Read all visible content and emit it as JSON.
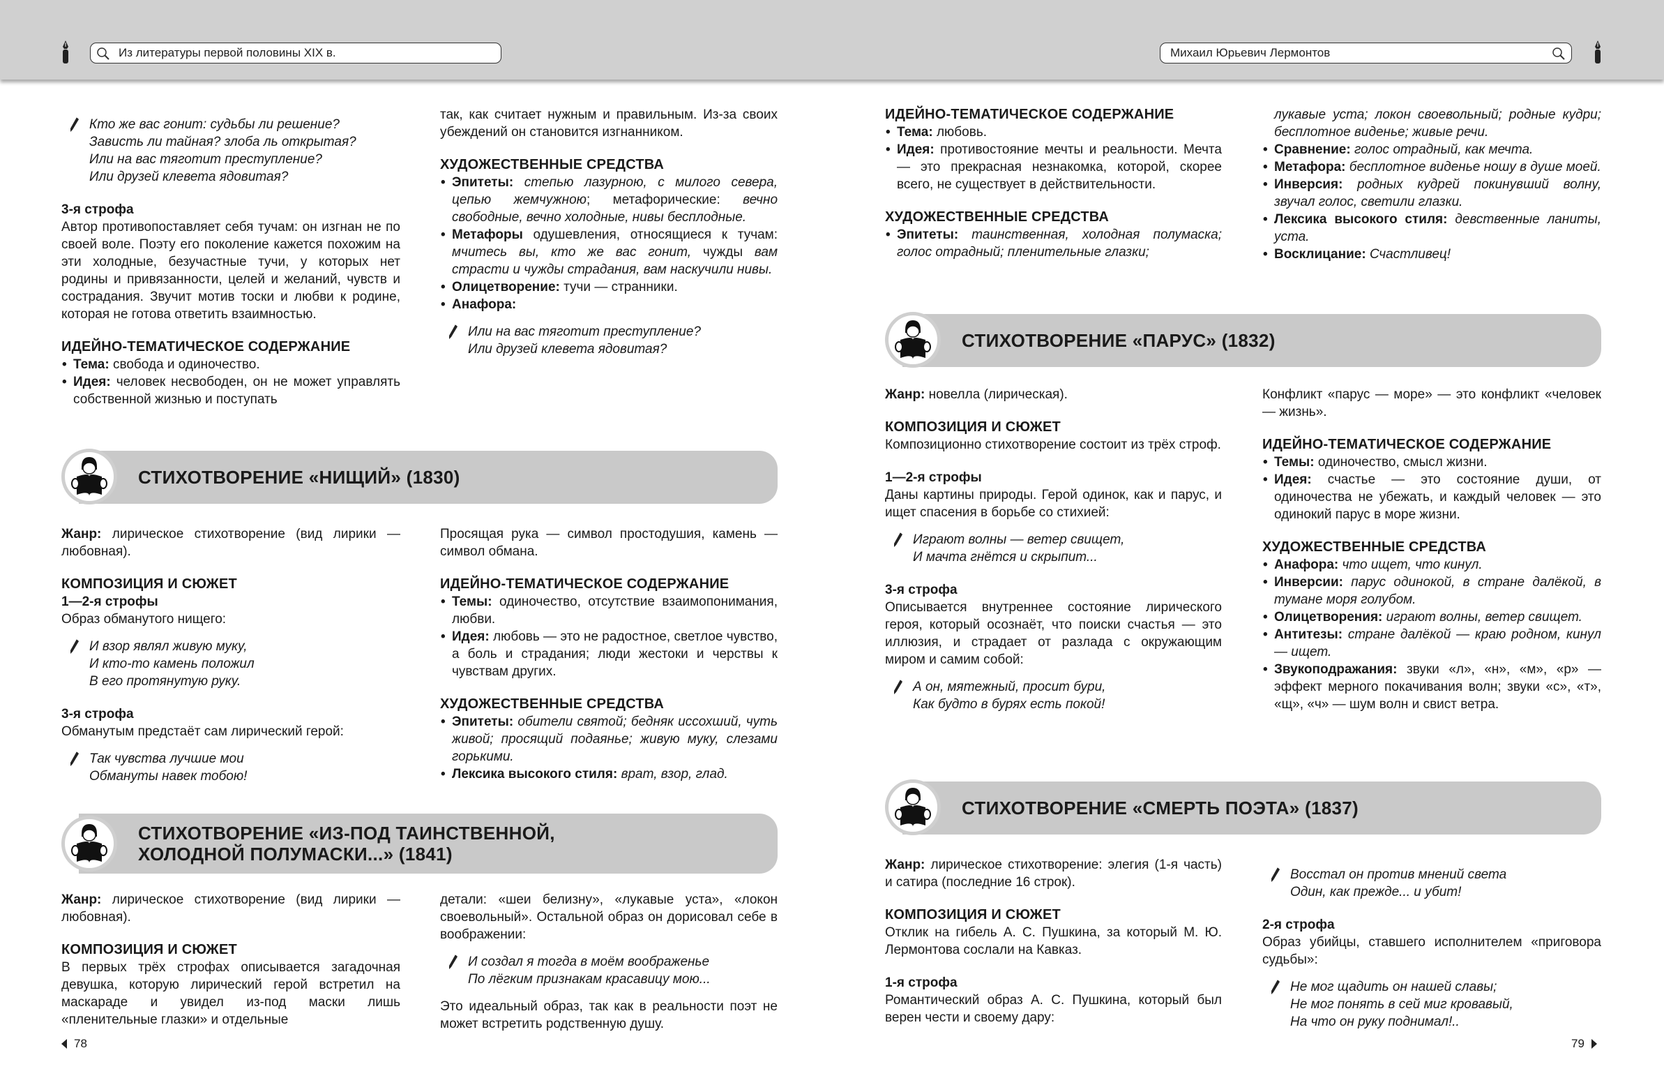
{
  "header": {
    "left_search": "Из литературы первой половины XIX в.",
    "right_search": "Михаил Юрьевич Лермонтов"
  },
  "page_numbers": {
    "left": "78",
    "right": "79"
  },
  "banners": [
    {
      "lines": [
        "СТИХОТВОРЕНИЕ «НИЩИЙ» (1830)"
      ]
    },
    {
      "lines": [
        "СТИХОТВОРЕНИЕ «ИЗ-ПОД ТАИНСТВЕННОЙ,",
        "ХОЛОДНОЙ ПОЛУМАСКИ...» (1841)"
      ]
    },
    {
      "lines": [
        "СТИХОТВОРЕНИЕ «ПАРУС» (1832)"
      ]
    },
    {
      "lines": [
        "СТИХОТВОРЕНИЕ «СМЕРТЬ ПОЭТА» (1837)"
      ]
    }
  ],
  "regions": [
    {
      "blocks": [
        {
          "type": "poem",
          "lines": [
            "Кто же вас гонит: судьбы ли решение?",
            "Зависть ли тайная? злоба ль открытая?",
            "Или на вас тяготит преступление?",
            "Или друзей клевета ядовитая?"
          ]
        },
        {
          "type": "s",
          "text": "3-я строфа"
        },
        {
          "type": "p",
          "segs": [
            [
              "n",
              "Автор противопоставляет себя тучам: он изгнан не по своей воле. Поэту его поколение кажется похожим на эти холодные, безучастные тучи, у которых нет родины и привязанности, целей и желаний, чувств и сострадания. Звучит мотив тоски и любви к родине, которая не готова ответить взаимностью."
            ]
          ]
        },
        {
          "type": "h",
          "text": "ИДЕЙНО-ТЕМАТИЧЕСКОЕ СОДЕРЖАНИЕ"
        },
        {
          "type": "ul",
          "items": [
            [
              [
                "b",
                "Тема:"
              ],
              [
                "n",
                " свобода и одиночество."
              ]
            ],
            [
              [
                "b",
                "Идея:"
              ],
              [
                "n",
                " человек несвободен, он не может управлять собственной жизнью и поступать"
              ]
            ]
          ]
        }
      ]
    },
    {
      "blocks": [
        {
          "type": "p",
          "segs": [
            [
              "n",
              "так, как считает нужным и правильным. Из-за своих убеждений он становится изгнанником."
            ]
          ]
        },
        {
          "type": "h",
          "text": "ХУДОЖЕСТВЕННЫЕ СРЕДСТВА"
        },
        {
          "type": "ul",
          "items": [
            [
              [
                "b",
                "Эпитеты:"
              ],
              [
                "i",
                " степью лазурною, с милого севера, цепью жемчужною"
              ],
              [
                "n",
                "; метафорические: "
              ],
              [
                "i",
                "вечно свободные, вечно холодные, нивы бесплодные."
              ]
            ],
            [
              [
                "b",
                "Метафоры"
              ],
              [
                "n",
                " одушевления, относящиеся к тучам: "
              ],
              [
                "i",
                "мчитесь вы, кто же вас гонит, "
              ],
              [
                "n",
                "чужды "
              ],
              [
                "i",
                "вам страсти и чужды страдания, вам наскучили нивы."
              ]
            ],
            [
              [
                "b",
                "Олицетворение:"
              ],
              [
                "n",
                " тучи — странники."
              ]
            ],
            [
              [
                "b",
                "Анафора:"
              ]
            ]
          ]
        },
        {
          "type": "poem",
          "lines": [
            "Или на вас тяготит преступление?",
            "Или друзей клевета ядовитая?"
          ]
        }
      ]
    },
    {
      "blocks": [
        {
          "type": "p",
          "segs": [
            [
              "b",
              "Жанр:"
            ],
            [
              "n",
              " лирическое стихотворение (вид лирики — любовная)."
            ]
          ]
        },
        {
          "type": "h",
          "text": "КОМПОЗИЦИЯ И СЮЖЕТ"
        },
        {
          "type": "s",
          "text": "1—2-я строфы"
        },
        {
          "type": "p",
          "segs": [
            [
              "n",
              "Образ обманутого нищего:"
            ]
          ]
        },
        {
          "type": "poem",
          "lines": [
            "И взор являл живую муку,",
            "И кто-то камень положил",
            "В его протянутую руку."
          ]
        },
        {
          "type": "s",
          "text": "3-я строфа"
        },
        {
          "type": "p",
          "segs": [
            [
              "n",
              "Обманутым предстаёт сам лирический герой:"
            ]
          ]
        },
        {
          "type": "poem",
          "lines": [
            "Так чувства лучшие мои",
            "Обмануты навек тобою!"
          ]
        }
      ]
    },
    {
      "blocks": [
        {
          "type": "p",
          "segs": [
            [
              "n",
              "Просящая рука — символ простодушия, камень — символ обмана."
            ]
          ]
        },
        {
          "type": "h",
          "text": "ИДЕЙНО-ТЕМАТИЧЕСКОЕ СОДЕРЖАНИЕ"
        },
        {
          "type": "ul",
          "items": [
            [
              [
                "b",
                "Темы:"
              ],
              [
                "n",
                " одиночество, отсутствие взаимопонимания, любви."
              ]
            ],
            [
              [
                "b",
                "Идея:"
              ],
              [
                "n",
                " любовь — это не радостное, светлое чувство, а боль и страдания; люди жестоки и черствы к чувствам других."
              ]
            ]
          ]
        },
        {
          "type": "h",
          "text": "ХУДОЖЕСТВЕННЫЕ СРЕДСТВА"
        },
        {
          "type": "ul",
          "items": [
            [
              [
                "b",
                "Эпитеты:"
              ],
              [
                "i",
                " обители святой; бедняк иссохший, чуть живой; просящий подаянье; живую муку, слезами горькими."
              ]
            ],
            [
              [
                "b",
                "Лексика высокого стиля:"
              ],
              [
                "i",
                " врат, взор, глад."
              ]
            ]
          ]
        }
      ]
    },
    {
      "blocks": [
        {
          "type": "p",
          "segs": [
            [
              "b",
              "Жанр:"
            ],
            [
              "n",
              " лирическое стихотворение (вид лирики — любовная)."
            ]
          ]
        },
        {
          "type": "h",
          "text": "КОМПОЗИЦИЯ И СЮЖЕТ"
        },
        {
          "type": "p",
          "segs": [
            [
              "n",
              "В первых трёх строфах описывается загадочная девушка, которую лирический герой встретил на маскараде и увидел из-под маски лишь «пленительные глазки» и отдельные"
            ]
          ]
        }
      ]
    },
    {
      "blocks": [
        {
          "type": "p",
          "segs": [
            [
              "n",
              "детали: «шеи белизну», «лукавые уста», «локон своевольный». Остальной образ он дорисовал себе в воображении:"
            ]
          ]
        },
        {
          "type": "poem",
          "lines": [
            "И создал я тогда в моём воображенье",
            "По лёгким признакам красавицу мою..."
          ]
        },
        {
          "type": "p",
          "segs": [
            [
              "n",
              "Это идеальный образ, так как в реальности поэт не может встретить родственную душу."
            ]
          ]
        }
      ]
    },
    {
      "blocks": [
        {
          "type": "h",
          "text": "ИДЕЙНО-ТЕМАТИЧЕСКОЕ СОДЕРЖАНИЕ"
        },
        {
          "type": "ul",
          "items": [
            [
              [
                "b",
                "Тема:"
              ],
              [
                "n",
                " любовь."
              ]
            ],
            [
              [
                "b",
                "Идея:"
              ],
              [
                "n",
                " противостояние мечты и реальности. Мечта — это прекрасная незнакомка, которой, скорее всего, не существует в действительности."
              ]
            ]
          ]
        },
        {
          "type": "h",
          "text": "ХУДОЖЕСТВЕННЫЕ СРЕДСТВА"
        },
        {
          "type": "ul",
          "items": [
            [
              [
                "b",
                "Эпитеты:"
              ],
              [
                "i",
                " таинственная, холодная полумаска; голос отрадный; пленительные глазки;"
              ]
            ]
          ]
        }
      ]
    },
    {
      "blocks": [
        {
          "type": "ulc",
          "segs": [
            [
              "i",
              "лукавые уста; локон своевольный; родные кудри; бесплотное виденье; живые речи."
            ]
          ]
        },
        {
          "type": "ul",
          "items": [
            [
              [
                "b",
                "Сравнение:"
              ],
              [
                "i",
                " голос отрадный, как мечта."
              ]
            ],
            [
              [
                "b",
                "Метафора:"
              ],
              [
                "i",
                " бесплотное виденье ношу в душе моей."
              ]
            ],
            [
              [
                "b",
                "Инверсия:"
              ],
              [
                "i",
                " родных кудрей покинувший волну, звучал голос, светили глазки."
              ]
            ],
            [
              [
                "b",
                "Лексика высокого стиля:"
              ],
              [
                "i",
                " девственные ланиты, уста."
              ]
            ],
            [
              [
                "b",
                "Восклицание:"
              ],
              [
                "i",
                " Счастливец!"
              ]
            ]
          ]
        }
      ]
    },
    {
      "blocks": [
        {
          "type": "p",
          "segs": [
            [
              "b",
              "Жанр:"
            ],
            [
              "n",
              " новелла (лирическая)."
            ]
          ]
        },
        {
          "type": "h",
          "text": "КОМПОЗИЦИЯ И СЮЖЕТ"
        },
        {
          "type": "p",
          "segs": [
            [
              "n",
              "Композиционно стихотворение состоит из трёх строф."
            ]
          ]
        },
        {
          "type": "s",
          "text": "1—2-я строфы"
        },
        {
          "type": "p",
          "segs": [
            [
              "n",
              "Даны картины природы. Герой одинок, как и парус, и ищет спасения в борьбе со стихией:"
            ]
          ]
        },
        {
          "type": "poem",
          "lines": [
            "Играют волны — ветер свищет,",
            "И мачта гнётся и скрыпит..."
          ]
        },
        {
          "type": "s",
          "text": "3-я строфа"
        },
        {
          "type": "p",
          "segs": [
            [
              "n",
              "Описывается внутреннее состояние лирического героя, который осознаёт, что поиски счастья — это иллюзия, и страдает от разлада с окружающим миром и самим собой:"
            ]
          ]
        },
        {
          "type": "poem",
          "lines": [
            "А он, мятежный, просит бури,",
            "Как будто в бурях есть покой!"
          ]
        }
      ]
    },
    {
      "blocks": [
        {
          "type": "p",
          "segs": [
            [
              "n",
              "Конфликт «парус — море» — это конфликт «человек — жизнь»."
            ]
          ]
        },
        {
          "type": "h",
          "text": "ИДЕЙНО-ТЕМАТИЧЕСКОЕ СОДЕРЖАНИЕ"
        },
        {
          "type": "ul",
          "items": [
            [
              [
                "b",
                "Темы:"
              ],
              [
                "n",
                " одиночество, смысл жизни."
              ]
            ],
            [
              [
                "b",
                "Идея:"
              ],
              [
                "n",
                " счастье — это состояние души, от одиночества не убежать, и каждый человек — это одинокий парус в море жизни."
              ]
            ]
          ]
        },
        {
          "type": "h",
          "text": "ХУДОЖЕСТВЕННЫЕ СРЕДСТВА"
        },
        {
          "type": "ul",
          "items": [
            [
              [
                "b",
                "Анафора:"
              ],
              [
                "i",
                " что ищет, что кинул."
              ]
            ],
            [
              [
                "b",
                "Инверсии:"
              ],
              [
                "i",
                " парус одинокой, в стране далёкой, в тумане моря голубом."
              ]
            ],
            [
              [
                "b",
                "Олицетворения:"
              ],
              [
                "i",
                " играют волны, ветер свищет."
              ]
            ],
            [
              [
                "b",
                "Антитезы:"
              ],
              [
                "i",
                " стране далёкой — краю родном, кинул — ищет."
              ]
            ],
            [
              [
                "b",
                "Звукоподражания:"
              ],
              [
                "n",
                " звуки «л», «н», «м», «р» — эффект мерного покачивания волн; звуки «с», «т», «щ», «ч» — шум волн и свист ветра."
              ]
            ]
          ]
        }
      ]
    },
    {
      "blocks": [
        {
          "type": "p",
          "segs": [
            [
              "b",
              "Жанр:"
            ],
            [
              "n",
              " лирическое стихотворение: элегия (1-я часть) и сатира (последние 16 строк)."
            ]
          ]
        },
        {
          "type": "h",
          "text": "КОМПОЗИЦИЯ И СЮЖЕТ"
        },
        {
          "type": "p",
          "segs": [
            [
              "n",
              "Отклик на гибель А. С. Пушкина, за который М. Ю. Лермонтова сослали на Кавказ."
            ]
          ]
        },
        {
          "type": "s",
          "text": "1-я строфа"
        },
        {
          "type": "p",
          "segs": [
            [
              "n",
              "Романтический образ А. С. Пушкина, который был верен чести и своему дару:"
            ]
          ]
        }
      ]
    },
    {
      "blocks": [
        {
          "type": "poem",
          "lines": [
            "Восстал он против мнений света",
            "Один, как прежде... и убит!"
          ]
        },
        {
          "type": "s",
          "text": "2-я строфа"
        },
        {
          "type": "p",
          "segs": [
            [
              "n",
              "Образ убийцы, ставшего исполнителем «приговора судьбы»:"
            ]
          ]
        },
        {
          "type": "poem",
          "lines": [
            "Не мог щадить он нашей славы;",
            "Не мог понять в сей миг кровавый,",
            "На что он руку поднимал!.."
          ]
        }
      ]
    }
  ]
}
